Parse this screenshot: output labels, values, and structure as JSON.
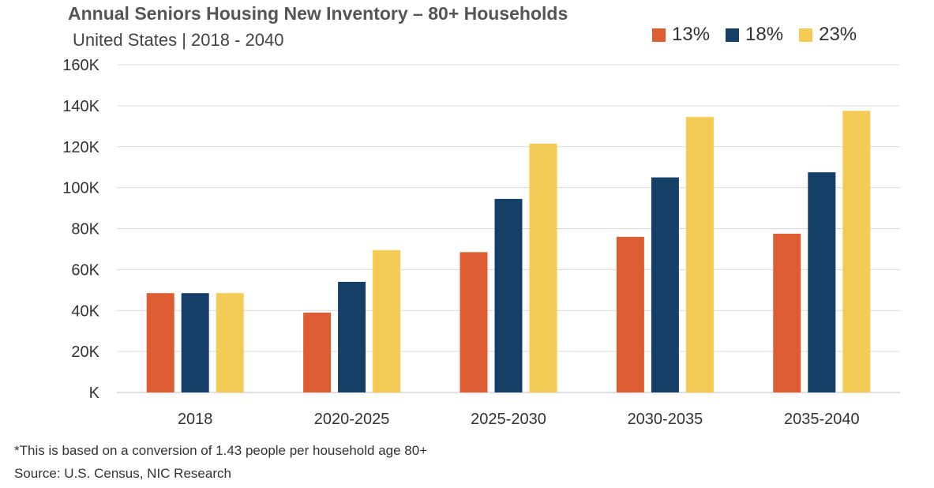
{
  "chart_data": {
    "type": "bar",
    "title": "Annual Seniors Housing New Inventory – 80+ Households",
    "subtitle": "United States | 2018 - 2040",
    "categories": [
      "2018",
      "2020-2025",
      "2025-2030",
      "2030-2035",
      "2035-2040"
    ],
    "series": [
      {
        "name": "13%",
        "color": "#dd5e34",
        "values": [
          48500,
          39000,
          68500,
          76000,
          77500
        ]
      },
      {
        "name": "18%",
        "color": "#163f68",
        "values": [
          48500,
          54000,
          94500,
          105000,
          107500
        ]
      },
      {
        "name": "23%",
        "color": "#f4cc55",
        "values": [
          48500,
          69500,
          121500,
          134500,
          137500
        ]
      }
    ],
    "ylim": [
      0,
      160000
    ],
    "yticks": [
      {
        "value": 0,
        "label": "K"
      },
      {
        "value": 20000,
        "label": "20K"
      },
      {
        "value": 40000,
        "label": "40K"
      },
      {
        "value": 60000,
        "label": "60K"
      },
      {
        "value": 80000,
        "label": "80K"
      },
      {
        "value": 100000,
        "label": "100K"
      },
      {
        "value": 120000,
        "label": "120K"
      },
      {
        "value": 140000,
        "label": "140K"
      },
      {
        "value": 160000,
        "label": "160K"
      }
    ],
    "grid": true,
    "legend_position": "top-right",
    "xlabel": "",
    "ylabel": ""
  },
  "notes": {
    "footnote": "*This is based on a conversion of 1.43 people per household age 80+",
    "source": "Source: U.S. Census, NIC Research"
  }
}
